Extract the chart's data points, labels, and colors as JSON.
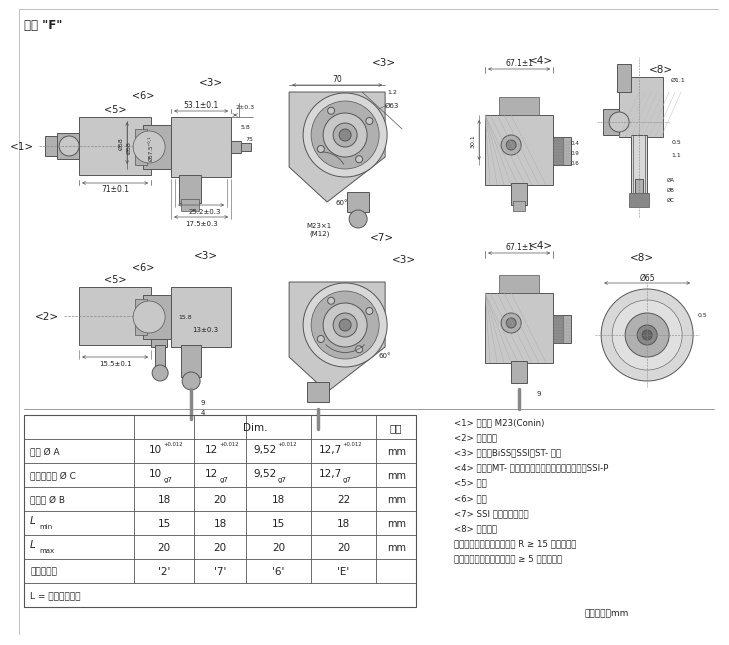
{
  "title": "盲轴 \"F\"",
  "bg": "#ffffff",
  "lc": "#555555",
  "gray1": "#c8c8c8",
  "gray2": "#b0b0b0",
  "gray3": "#888888",
  "gray4": "#666666",
  "gray5": "#d8d8d8",
  "tc": "#222222",
  "table_header": "Dim.",
  "table_unit_header": "单位",
  "col_labels": [
    "",
    "Dim.",
    "",
    "",
    "",
    "单位"
  ],
  "row_label_col": [
    "盲轴 Ø A",
    "匹配连接轴 Ø C",
    "夹紧环 Ø B",
    "L_min",
    "L_max",
    "轴型号代码"
  ],
  "row_data": [
    [
      "10",
      "+0.012",
      "12",
      "+0.012",
      "9,52",
      "+0.012",
      "12,7",
      "+0.012",
      "mm"
    ],
    [
      "10",
      "g7",
      "12",
      "g7",
      "9,52",
      "g7",
      "12,7",
      "g7",
      "mm"
    ],
    [
      "18",
      "",
      "20",
      "",
      "18",
      "",
      "22",
      "",
      "mm"
    ],
    [
      "15",
      "",
      "18",
      "",
      "15",
      "",
      "18",
      "",
      "mm"
    ],
    [
      "20",
      "",
      "20",
      "",
      "20",
      "",
      "20",
      "",
      "mm"
    ],
    [
      "'2'",
      "",
      "'7'",
      "",
      "'6'",
      "",
      "'E'",
      "",
      ""
    ]
  ],
  "table_footer": "L = 连接轴的深度",
  "notes": [
    "<1> 连接器 M23(Conin)",
    "<2> 连接电缆",
    "<3> 接口；BiSS、SSI、ST- 并行",
    "<4> 接口；MT- 并行（仅适用电缆）、现场总线、SSI-P",
    "<5> 轴向",
    "<6> 径向",
    "<7> SSI 可选括号内的值",
    "<8> 客户端面",
    "弹性安装时的电缆弯曲半径 R ≥ 15 倍电缆直径",
    "固定安装时的电缆弯曲半径 ≥ 5 倍电缆直径"
  ],
  "unit_note": "尺寸单位：mm",
  "label_1": "<1>",
  "label_2": "<2>",
  "label_3": "<3>",
  "label_4": "<4>",
  "label_5": "<5>",
  "label_6": "<6>",
  "label_7": "<7>",
  "label_8": "<8>"
}
